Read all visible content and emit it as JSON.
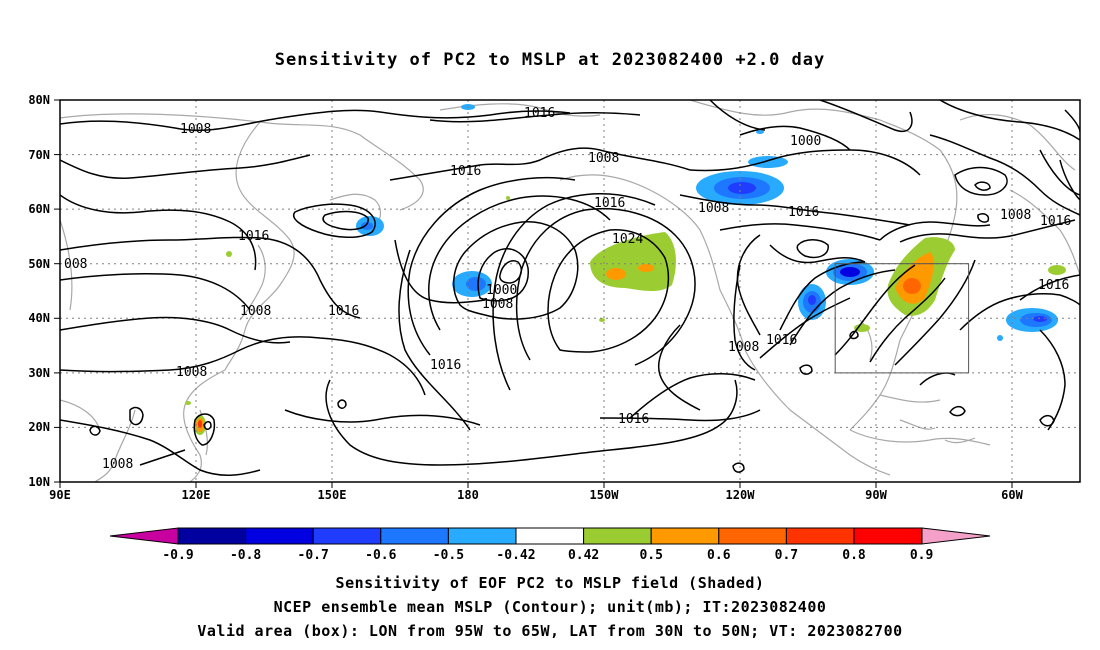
{
  "title": "Sensitivity of PC2 to MSLP at 2023082400 +2.0 day",
  "lat_labels": [
    "80N",
    "70N",
    "60N",
    "50N",
    "40N",
    "30N",
    "20N",
    "10N"
  ],
  "lon_labels": [
    "90E",
    "120E",
    "150E",
    "180",
    "150W",
    "120W",
    "90W",
    "60W"
  ],
  "contour_labels": [
    {
      "text": "1008",
      "id": "c1"
    },
    {
      "text": "1016",
      "id": "c2"
    },
    {
      "text": "1008",
      "id": "c3"
    },
    {
      "text": "1000",
      "id": "c4"
    },
    {
      "text": "1016",
      "id": "c5"
    },
    {
      "text": "1016",
      "id": "c6"
    },
    {
      "text": "1024",
      "id": "c7"
    },
    {
      "text": "1000",
      "id": "c8"
    },
    {
      "text": "1008",
      "id": "c9"
    },
    {
      "text": "1016",
      "id": "c10"
    },
    {
      "text": "1008",
      "id": "c11"
    },
    {
      "text": "1016",
      "id": "c12"
    },
    {
      "text": "1016",
      "id": "c13"
    },
    {
      "text": "008",
      "id": "c14"
    },
    {
      "text": "1008",
      "id": "c15"
    },
    {
      "text": "1016",
      "id": "c16"
    },
    {
      "text": "1016",
      "id": "c17"
    },
    {
      "text": "1008",
      "id": "c18"
    },
    {
      "text": "1016",
      "id": "c19"
    },
    {
      "text": "1008",
      "id": "c20"
    },
    {
      "text": "1016",
      "id": "c21"
    },
    {
      "text": "1008",
      "id": "c22"
    },
    {
      "text": "1008",
      "id": "c23"
    }
  ],
  "colorbar": {
    "labels": [
      "-0.9",
      "-0.8",
      "-0.7",
      "-0.6",
      "-0.5",
      "-0.42",
      "0.42",
      "0.5",
      "0.6",
      "0.7",
      "0.8",
      "0.9"
    ],
    "colors": [
      "#0000a0",
      "#0000e0",
      "#1f3cff",
      "#1e78ff",
      "#28aaff",
      "#ffffff",
      "#9bcd32",
      "#ff9900",
      "#ff6600",
      "#ff3300",
      "#ff0000"
    ],
    "low_end_color": "#c800a0",
    "high_end_color": "#f5a0c8"
  },
  "captions": [
    "Sensitivity of EOF PC2 to MSLP field (Shaded)",
    "NCEP ensemble mean MSLP (Contour); unit(mb); IT:2023082400",
    "Valid area (box): LON from 95W to 65W, LAT from 30N to 50N; VT: 2023082700"
  ]
}
